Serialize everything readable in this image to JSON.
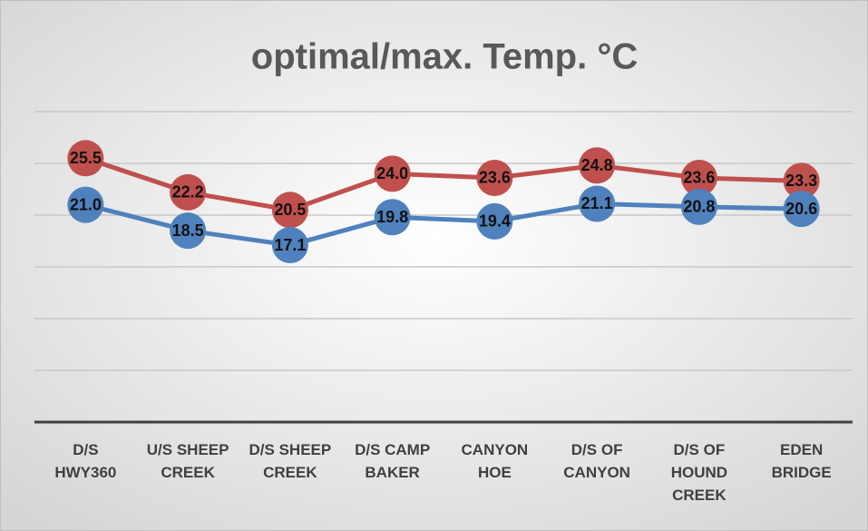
{
  "chart_data": {
    "type": "line",
    "title": "optimal/max. Temp. °C",
    "categories": [
      "D/S HWY360",
      "U/S SHEEP CREEK",
      "D/S SHEEP CREEK",
      "D/S CAMP BAKER",
      "CANYON HOE",
      "D/S OF CANYON",
      "D/S OF HOUND CREEK",
      "EDEN BRIDGE"
    ],
    "series": [
      {
        "color": "#c0504d",
        "values": [
          25.5,
          22.2,
          20.5,
          24.0,
          23.6,
          24.8,
          23.6,
          23.3
        ],
        "value_labels": [
          "25.5",
          "22.2",
          "20.5",
          "24.0",
          "23.6",
          "24.8",
          "23.6",
          "23.3"
        ]
      },
      {
        "color": "#4f81bd",
        "values": [
          21.0,
          18.5,
          17.1,
          19.8,
          19.4,
          21.1,
          20.8,
          20.6
        ],
        "value_labels": [
          "21.0",
          "18.5",
          "17.1",
          "19.8",
          "19.4",
          "21.1",
          "20.8",
          "20.6"
        ]
      }
    ],
    "ylim": [
      0,
      30
    ],
    "yticks": [
      0,
      5,
      10,
      15,
      20,
      25,
      30
    ],
    "grid": true
  }
}
